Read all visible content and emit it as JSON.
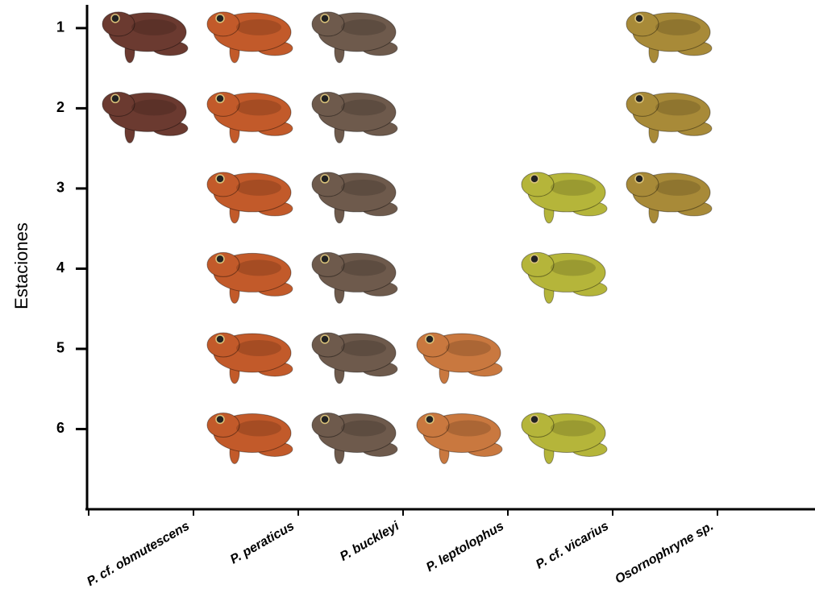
{
  "chart_data": {
    "type": "presence",
    "y_label": "Estaciones",
    "ylim": [
      7,
      0.73
    ],
    "yticks": [
      1,
      2,
      3,
      4,
      5,
      6
    ],
    "series": [
      {
        "name": "P. cf. obmutescens",
        "color": "#6b3a30",
        "values": [
          1,
          2
        ]
      },
      {
        "name": "P. peraticus",
        "color": "#c25a2a",
        "values": [
          1,
          2,
          3,
          4,
          5,
          6
        ]
      },
      {
        "name": "P. buckleyi",
        "color": "#6e5a4c",
        "values": [
          1,
          2,
          3,
          4,
          5,
          6
        ]
      },
      {
        "name": "P. leptolophus",
        "color": "#c9783f",
        "values": [
          5,
          6
        ]
      },
      {
        "name": "P. cf. vicarius",
        "color": "#b5b53a",
        "values": [
          3,
          4,
          6
        ]
      },
      {
        "name": "Osornophryne sp.",
        "color": "#a88a38",
        "values": [
          1,
          2,
          3
        ]
      }
    ]
  }
}
